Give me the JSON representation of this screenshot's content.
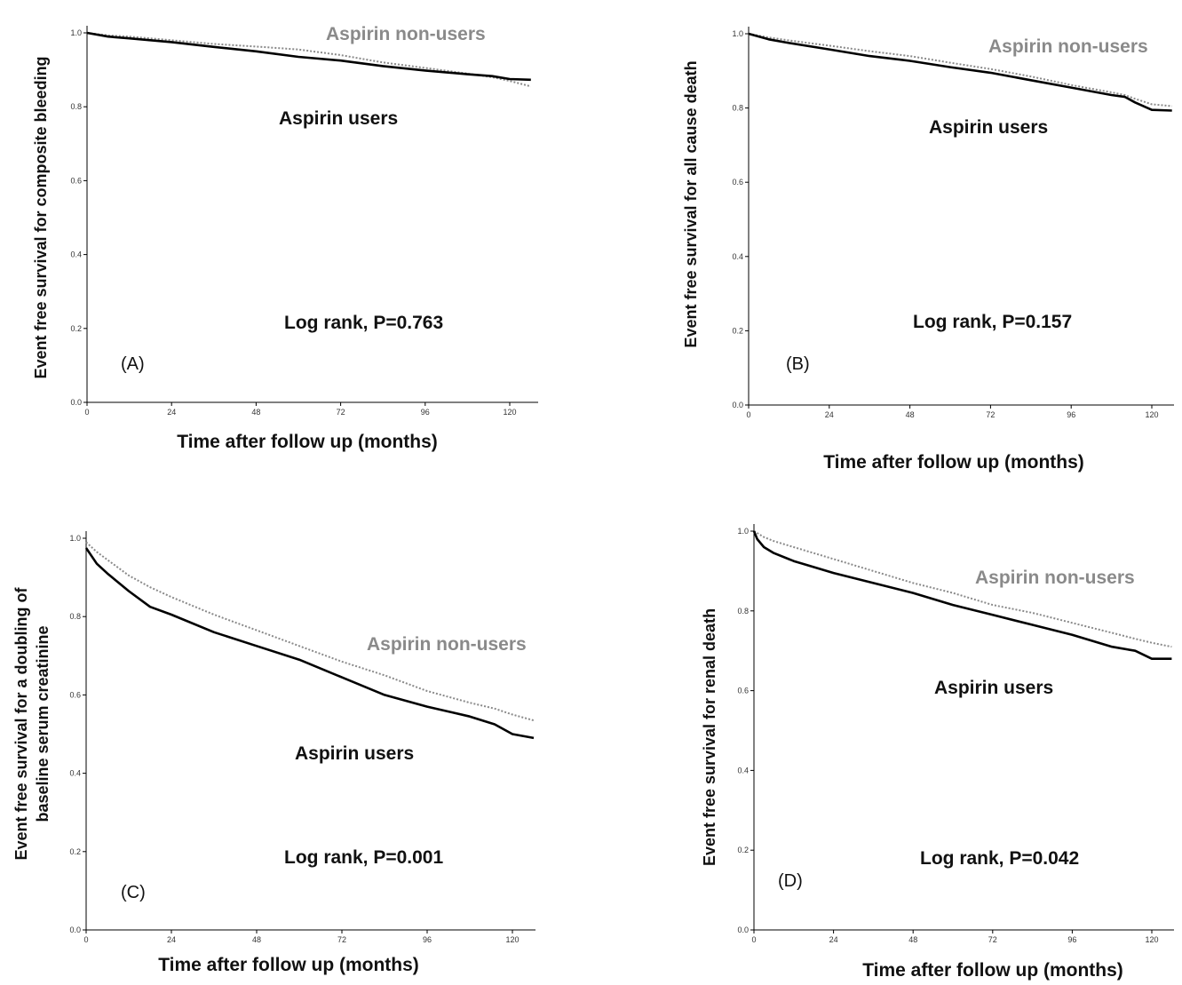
{
  "figure": {
    "series_names": {
      "nonusers": "Aspirin non-users",
      "users": "Aspirin users"
    },
    "colors": {
      "users": "#000000",
      "nonusers": "#8a8a8a"
    }
  },
  "chart_data": [
    {
      "type": "line",
      "panel_label": "(A)",
      "ylabel": "Event free survival for composite bleeding",
      "xlabel": "Time after follow up (months)",
      "annotation": "Log rank, P=0.763",
      "xlim": [
        0,
        126
      ],
      "ylim": [
        0.0,
        1.0
      ],
      "xticks": [
        "0",
        "24",
        "48",
        "72",
        "96",
        "120"
      ],
      "yticks": [
        "0.0",
        "0.2",
        "0.4",
        "0.6",
        "0.8",
        "1.0"
      ],
      "grid": false,
      "series": [
        {
          "name": "Aspirin users",
          "style": "solid",
          "x": [
            0,
            6,
            12,
            24,
            36,
            48,
            60,
            72,
            84,
            96,
            108,
            115,
            120,
            126
          ],
          "y": [
            1.0,
            0.99,
            0.985,
            0.975,
            0.962,
            0.95,
            0.935,
            0.925,
            0.91,
            0.898,
            0.888,
            0.883,
            0.875,
            0.873
          ]
        },
        {
          "name": "Aspirin non-users",
          "style": "dotted",
          "x": [
            0,
            6,
            12,
            24,
            36,
            48,
            60,
            72,
            84,
            96,
            108,
            115,
            120,
            126
          ],
          "y": [
            1.0,
            0.993,
            0.99,
            0.98,
            0.97,
            0.963,
            0.955,
            0.94,
            0.92,
            0.905,
            0.89,
            0.88,
            0.87,
            0.855
          ]
        }
      ]
    },
    {
      "type": "line",
      "panel_label": "(B)",
      "ylabel": "Event free survival for all cause death",
      "xlabel": "Time after follow up (months)",
      "annotation": "Log rank, P=0.157",
      "xlim": [
        0,
        126
      ],
      "ylim": [
        0.0,
        1.0
      ],
      "xticks": [
        "0",
        "24",
        "48",
        "72",
        "96",
        "120"
      ],
      "yticks": [
        "0.0",
        "0.2",
        "0.4",
        "0.6",
        "0.8",
        "1.0"
      ],
      "grid": false,
      "series": [
        {
          "name": "Aspirin users",
          "style": "solid",
          "x": [
            0,
            6,
            12,
            24,
            36,
            48,
            60,
            72,
            84,
            96,
            108,
            112,
            115,
            120,
            126
          ],
          "y": [
            1.0,
            0.985,
            0.975,
            0.958,
            0.94,
            0.927,
            0.91,
            0.895,
            0.875,
            0.855,
            0.835,
            0.83,
            0.815,
            0.795,
            0.793
          ]
        },
        {
          "name": "Aspirin non-users",
          "style": "dotted",
          "x": [
            0,
            6,
            12,
            24,
            36,
            48,
            60,
            72,
            84,
            96,
            108,
            112,
            115,
            120,
            126
          ],
          "y": [
            1.0,
            0.99,
            0.982,
            0.968,
            0.953,
            0.94,
            0.922,
            0.905,
            0.885,
            0.862,
            0.842,
            0.835,
            0.825,
            0.81,
            0.805
          ]
        }
      ]
    },
    {
      "type": "line",
      "panel_label": "(C)",
      "ylabel": "Event free survival for a doubling of baseline serum creatinine",
      "ylabel_lines": [
        "Event free survival for a doubling of",
        "baseline serum creatinine"
      ],
      "xlabel": "Time after follow up (months)",
      "annotation": "Log rank, P=0.001",
      "xlim": [
        0,
        126
      ],
      "ylim": [
        0.0,
        1.0
      ],
      "xticks": [
        "0",
        "24",
        "48",
        "72",
        "96",
        "120"
      ],
      "yticks": [
        "0.0",
        "0.2",
        "0.4",
        "0.6",
        "0.8",
        "1.0"
      ],
      "grid": false,
      "series": [
        {
          "name": "Aspirin users",
          "style": "solid",
          "x": [
            0,
            3,
            6,
            12,
            18,
            24,
            36,
            48,
            60,
            72,
            84,
            96,
            108,
            115,
            120,
            126
          ],
          "y": [
            0.975,
            0.935,
            0.91,
            0.865,
            0.825,
            0.805,
            0.76,
            0.725,
            0.69,
            0.645,
            0.6,
            0.57,
            0.545,
            0.525,
            0.5,
            0.49
          ]
        },
        {
          "name": "Aspirin non-users",
          "style": "dotted",
          "x": [
            0,
            3,
            6,
            12,
            18,
            24,
            36,
            48,
            60,
            72,
            84,
            96,
            108,
            115,
            120,
            126
          ],
          "y": [
            0.99,
            0.965,
            0.945,
            0.905,
            0.875,
            0.85,
            0.805,
            0.765,
            0.725,
            0.685,
            0.65,
            0.61,
            0.58,
            0.565,
            0.55,
            0.535
          ]
        }
      ]
    },
    {
      "type": "line",
      "panel_label": "(D)",
      "ylabel": "Event free survival for renal death",
      "xlabel": "Time after follow up (months)",
      "annotation": "Log rank, P=0.042",
      "xlim": [
        0,
        126
      ],
      "ylim": [
        0.0,
        1.0
      ],
      "xticks": [
        "0",
        "24",
        "48",
        "72",
        "96",
        "120"
      ],
      "yticks": [
        "0.0",
        "0.2",
        "0.4",
        "0.6",
        "0.8",
        "1.0"
      ],
      "grid": false,
      "series": [
        {
          "name": "Aspirin users",
          "style": "solid",
          "x": [
            0,
            1,
            3,
            6,
            12,
            24,
            36,
            48,
            60,
            72,
            84,
            96,
            108,
            115,
            120,
            126
          ],
          "y": [
            1.0,
            0.98,
            0.96,
            0.945,
            0.925,
            0.895,
            0.87,
            0.845,
            0.815,
            0.79,
            0.765,
            0.74,
            0.71,
            0.7,
            0.68,
            0.68
          ]
        },
        {
          "name": "Aspirin non-users",
          "style": "dotted",
          "x": [
            0,
            1,
            3,
            6,
            12,
            24,
            36,
            48,
            60,
            72,
            84,
            96,
            108,
            115,
            120,
            126
          ],
          "y": [
            1.0,
            0.995,
            0.985,
            0.975,
            0.96,
            0.93,
            0.9,
            0.87,
            0.845,
            0.815,
            0.795,
            0.77,
            0.745,
            0.73,
            0.72,
            0.71
          ]
        }
      ]
    }
  ]
}
